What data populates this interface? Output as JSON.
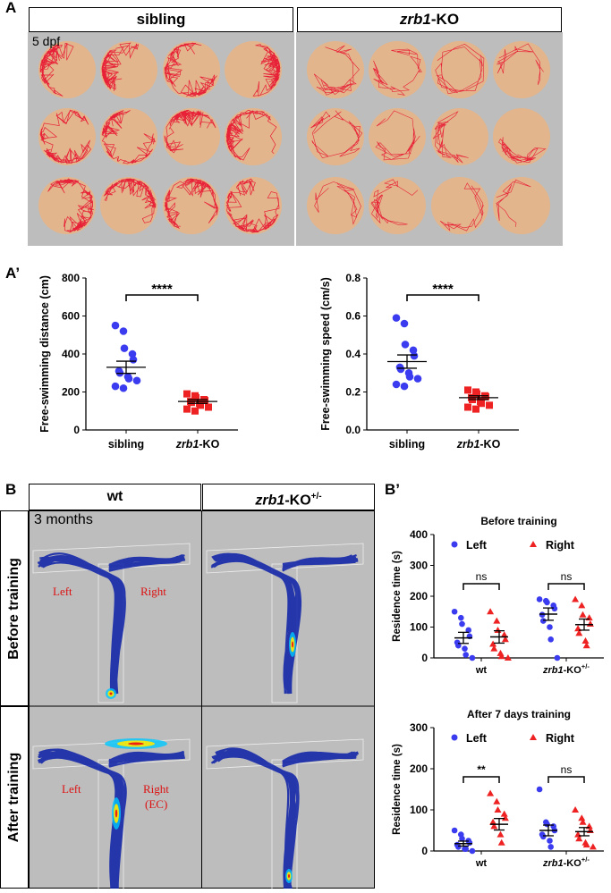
{
  "panelA": {
    "letter": "A",
    "groups": [
      "sibling",
      "zrb1-KO"
    ],
    "age_label": "5 dpf"
  },
  "panelA2": {
    "letter": "A’",
    "chart_data": [
      {
        "type": "scatter",
        "ylabel": "Free-swimming distance (cm)",
        "categories": [
          "sibling",
          "zrb1-KO"
        ],
        "ylim": [
          0,
          800
        ],
        "yticks": [
          0,
          200,
          400,
          600,
          800
        ],
        "significance": "****",
        "series": [
          {
            "values": [
              550,
              520,
              430,
              400,
              370,
              310,
              300,
              280,
              270,
              260,
              230,
              220
            ],
            "mean": 330,
            "sem": 32,
            "color": "#3b3bef"
          },
          {
            "values": [
              190,
              180,
              170,
              160,
              155,
              150,
              145,
              140,
              130,
              120,
              110,
              100
            ],
            "mean": 150,
            "sem": 10,
            "color": "#ee2222"
          }
        ]
      },
      {
        "type": "scatter",
        "ylabel": "Free-swimming speed (cm/s)",
        "categories": [
          "sibling",
          "zrb1-KO"
        ],
        "ylim": [
          0,
          0.8
        ],
        "yticks": [
          0.0,
          0.2,
          0.4,
          0.6,
          0.8
        ],
        "significance": "****",
        "series": [
          {
            "values": [
              0.59,
              0.56,
              0.45,
              0.42,
              0.39,
              0.33,
              0.32,
              0.3,
              0.28,
              0.27,
              0.24,
              0.23
            ],
            "mean": 0.36,
            "sem": 0.035,
            "color": "#3b3bef"
          },
          {
            "values": [
              0.21,
              0.2,
              0.19,
              0.18,
              0.175,
              0.17,
              0.16,
              0.15,
              0.14,
              0.13,
              0.12,
              0.11
            ],
            "mean": 0.17,
            "sem": 0.01,
            "color": "#ee2222"
          }
        ]
      }
    ]
  },
  "panelB": {
    "letter": "B",
    "columns": [
      "wt",
      "zrb1-KO+/-"
    ],
    "rows": [
      "Before training",
      "After training"
    ],
    "age_label": "3 months",
    "maze_labels": {
      "left": "Left",
      "right": "Right",
      "ec": "(EC)"
    }
  },
  "panelB2": {
    "letter": "B’",
    "chart_data": [
      {
        "type": "scatter",
        "title": "Before training",
        "ylabel": "Residence time (s)",
        "categories": [
          "wt",
          "zrb1-KO+/-"
        ],
        "legend": [
          "Left",
          "Right"
        ],
        "ylim": [
          0,
          400
        ],
        "yticks": [
          0,
          100,
          200,
          300,
          400
        ],
        "significance": [
          "ns",
          "ns"
        ],
        "series": [
          {
            "name": "Left",
            "group": "wt",
            "values": [
              150,
              130,
              110,
              90,
              70,
              50,
              40,
              30,
              10,
              0
            ],
            "mean": 65,
            "sem": 18
          },
          {
            "name": "Right",
            "group": "wt",
            "values": [
              150,
              120,
              90,
              75,
              60,
              45,
              30,
              15,
              5,
              0
            ],
            "mean": 68,
            "sem": 20
          },
          {
            "name": "Left",
            "group": "zrb1-KO+/-",
            "values": [
              190,
              185,
              180,
              170,
              160,
              140,
              120,
              100,
              60,
              0
            ],
            "mean": 142,
            "sem": 20
          },
          {
            "name": "Right",
            "group": "zrb1-KO+/-",
            "values": [
              190,
              170,
              140,
              130,
              110,
              95,
              80,
              55,
              40
            ],
            "mean": 108,
            "sem": 18
          }
        ]
      },
      {
        "type": "scatter",
        "title": "After 7 days training",
        "ylabel": "Residence time (s)",
        "categories": [
          "wt",
          "zrb1-KO+/-"
        ],
        "legend": [
          "Left",
          "Right"
        ],
        "ylim": [
          0,
          300
        ],
        "yticks": [
          0,
          100,
          200,
          300
        ],
        "significance": [
          "**",
          "ns"
        ],
        "series": [
          {
            "name": "Left",
            "group": "wt",
            "values": [
              50,
              40,
              30,
              25,
              20,
              15,
              10,
              5,
              5,
              0
            ],
            "mean": 18,
            "sem": 6
          },
          {
            "name": "Right",
            "group": "wt",
            "values": [
              140,
              120,
              100,
              90,
              80,
              70,
              60,
              40,
              20
            ],
            "mean": 65,
            "sem": 14
          },
          {
            "name": "Left",
            "group": "zrb1-KO+/-",
            "values": [
              150,
              70,
              65,
              60,
              50,
              40,
              35,
              25,
              10
            ],
            "mean": 50,
            "sem": 13
          },
          {
            "name": "Right",
            "group": "zrb1-KO+/-",
            "values": [
              100,
              80,
              70,
              60,
              50,
              40,
              30,
              20,
              15,
              10
            ],
            "mean": 47,
            "sem": 10
          }
        ]
      }
    ]
  },
  "colors": {
    "blue": "#3b3bef",
    "red": "#ee2222",
    "dish": "#e3b58c",
    "track": "#e8102e",
    "grey_bg": "#bdbdbd",
    "maze_blue": "#0a1fa8"
  }
}
